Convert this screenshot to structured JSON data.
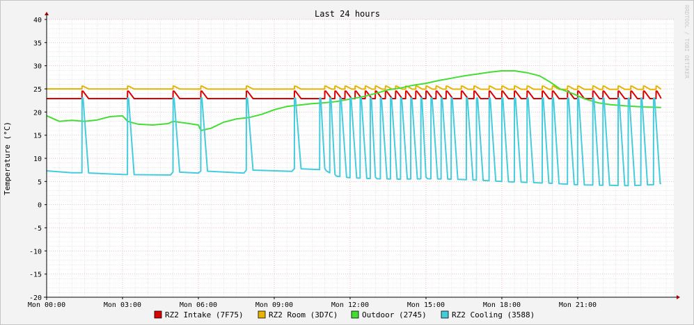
{
  "chart_data": {
    "type": "line",
    "title": "Last 24 hours",
    "ylabel": "Temperature (°C)",
    "xlabel": "",
    "side_label": "RRDTOOL / TOBI OETIKER",
    "ylim": [
      -20,
      40
    ],
    "y_ticks": [
      40,
      35,
      30,
      25,
      20,
      15,
      10,
      5,
      0,
      -5,
      -10,
      -15,
      -20
    ],
    "xlim_hours": [
      0,
      24.8
    ],
    "x_ticks": [
      {
        "hour": 0,
        "label": "Mon 00:00"
      },
      {
        "hour": 3,
        "label": "Mon 03:00"
      },
      {
        "hour": 6,
        "label": "Mon 06:00"
      },
      {
        "hour": 9,
        "label": "Mon 09:00"
      },
      {
        "hour": 12,
        "label": "Mon 12:00"
      },
      {
        "hour": 15,
        "label": "Mon 15:00"
      },
      {
        "hour": 18,
        "label": "Mon 18:00"
      },
      {
        "hour": 21,
        "label": "Mon 21:00"
      }
    ],
    "grid": true,
    "legend_position": "bottom",
    "series": [
      {
        "name": "RZ2 Intake (7F75)",
        "color": "#dd0000",
        "kind": "base_with_peaks",
        "base": [
          [
            0,
            22.9
          ],
          [
            24.3,
            22.9
          ]
        ],
        "peaks": {
          "value": 24.5,
          "hours": [
            1.4,
            3.2,
            5.0,
            6.1,
            7.9,
            9.8,
            11.0,
            11.4,
            11.8,
            12.2,
            12.6,
            13.0,
            13.4,
            13.8,
            14.2,
            14.6,
            15.0,
            15.4,
            15.8,
            16.4,
            16.9,
            17.5,
            18.0,
            18.5,
            19.0,
            19.6,
            20.0,
            20.6,
            21.0,
            21.6,
            22.0,
            22.6,
            23.1,
            23.6,
            24.1
          ]
        }
      },
      {
        "name": "RZ2 Room (3D7C)",
        "color": "#e8b200",
        "kind": "base_with_peaks",
        "base": [
          [
            0,
            25.0
          ],
          [
            24.3,
            24.9
          ]
        ],
        "peaks": {
          "value": 25.6,
          "hours": [
            1.4,
            3.2,
            5.0,
            6.1,
            7.9,
            9.8,
            11.0,
            11.4,
            11.8,
            12.2,
            12.6,
            13.0,
            13.4,
            13.8,
            14.2,
            14.6,
            15.0,
            15.4,
            15.8,
            16.4,
            16.9,
            17.5,
            18.0,
            18.5,
            19.0,
            19.6,
            20.0,
            20.6,
            21.0,
            21.6,
            22.0,
            22.6,
            23.1,
            23.6,
            24.1
          ]
        }
      },
      {
        "name": "Outdoor (2745)",
        "color": "#44dd33",
        "kind": "line",
        "points": [
          [
            0,
            19.2
          ],
          [
            0.5,
            18.0
          ],
          [
            1.0,
            18.2
          ],
          [
            1.5,
            18.0
          ],
          [
            2.0,
            18.3
          ],
          [
            2.5,
            19.0
          ],
          [
            3.0,
            19.2
          ],
          [
            3.2,
            18.0
          ],
          [
            3.6,
            17.4
          ],
          [
            4.2,
            17.2
          ],
          [
            4.8,
            17.5
          ],
          [
            5.0,
            18.0
          ],
          [
            5.5,
            17.6
          ],
          [
            6.0,
            17.2
          ],
          [
            6.1,
            16.0
          ],
          [
            6.5,
            16.5
          ],
          [
            7.0,
            17.8
          ],
          [
            7.5,
            18.5
          ],
          [
            8.0,
            18.8
          ],
          [
            8.5,
            19.5
          ],
          [
            9.0,
            20.5
          ],
          [
            9.5,
            21.2
          ],
          [
            10.0,
            21.5
          ],
          [
            10.5,
            21.8
          ],
          [
            11.0,
            22.0
          ],
          [
            11.5,
            22.3
          ],
          [
            12.0,
            22.8
          ],
          [
            12.5,
            23.3
          ],
          [
            13.0,
            24.0
          ],
          [
            13.5,
            24.8
          ],
          [
            14.0,
            25.2
          ],
          [
            14.5,
            25.8
          ],
          [
            15.0,
            26.2
          ],
          [
            15.5,
            26.8
          ],
          [
            16.0,
            27.3
          ],
          [
            16.5,
            27.8
          ],
          [
            17.0,
            28.2
          ],
          [
            17.5,
            28.6
          ],
          [
            18.0,
            28.9
          ],
          [
            18.5,
            28.9
          ],
          [
            19.0,
            28.5
          ],
          [
            19.5,
            27.8
          ],
          [
            19.9,
            26.5
          ],
          [
            20.3,
            25.0
          ],
          [
            20.8,
            24.0
          ],
          [
            21.3,
            22.8
          ],
          [
            21.8,
            22.0
          ],
          [
            22.3,
            21.6
          ],
          [
            23.0,
            21.3
          ],
          [
            23.6,
            21.1
          ],
          [
            24.3,
            21.0
          ]
        ]
      },
      {
        "name": "RZ2 Cooling (3588)",
        "color": "#44ccdd",
        "kind": "base_with_peaks",
        "base": [
          [
            0,
            7.3
          ],
          [
            1.0,
            6.9
          ],
          [
            1.4,
            6.9
          ],
          [
            3.0,
            6.5
          ],
          [
            4.9,
            6.4
          ],
          [
            5.0,
            7.1
          ],
          [
            6.0,
            6.8
          ],
          [
            6.1,
            7.3
          ],
          [
            7.8,
            6.8
          ],
          [
            7.9,
            7.5
          ],
          [
            9.7,
            7.2
          ],
          [
            9.8,
            7.8
          ],
          [
            11.0,
            7.5
          ],
          [
            11.4,
            6.2
          ],
          [
            12.0,
            5.8
          ],
          [
            13.0,
            5.6
          ],
          [
            14.0,
            5.5
          ],
          [
            15.0,
            5.6
          ],
          [
            16.0,
            5.5
          ],
          [
            17.0,
            5.3
          ],
          [
            18.0,
            5.0
          ],
          [
            19.0,
            4.8
          ],
          [
            20.0,
            4.6
          ],
          [
            21.0,
            4.3
          ],
          [
            22.0,
            4.2
          ],
          [
            23.0,
            4.1
          ],
          [
            24.0,
            4.3
          ],
          [
            24.3,
            4.6
          ]
        ],
        "peaks": {
          "value": 23.0,
          "hours": [
            1.4,
            3.2,
            5.0,
            6.1,
            7.9,
            9.8,
            10.8,
            11.2,
            11.6,
            12.0,
            12.4,
            12.8,
            13.2,
            13.6,
            14.0,
            14.4,
            14.8,
            15.2,
            15.6,
            16.0,
            16.6,
            17.0,
            17.5,
            18.0,
            18.5,
            19.0,
            19.6,
            20.0,
            20.6,
            21.0,
            21.6,
            22.0,
            22.6,
            23.0,
            23.5,
            24.0
          ]
        }
      }
    ]
  }
}
